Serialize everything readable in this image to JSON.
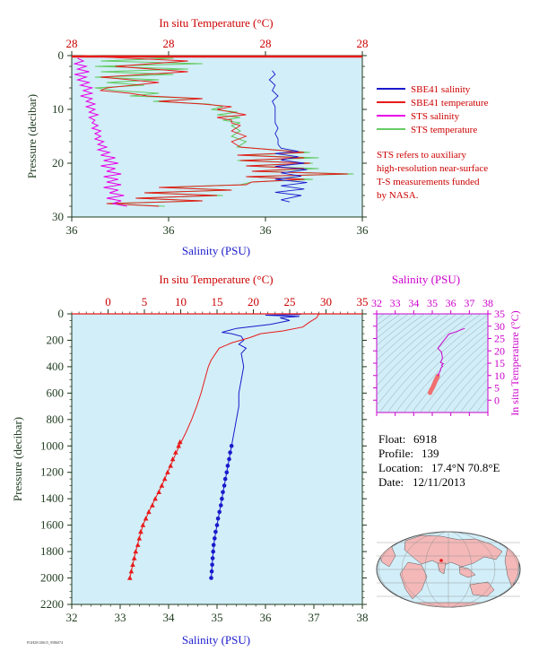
{
  "colors": {
    "plot_bg": "#d2eef8",
    "salinity": "#1a1acc",
    "temperature": "#e81a1a",
    "sts_salinity": "#e800e8",
    "sts_temperature": "#66cc66",
    "axis_dark": "#1e3a1e",
    "title_red": "#cc0000",
    "title_magenta": "#cc00cc"
  },
  "legend": {
    "items": [
      {
        "label": "SBE41 salinity",
        "color": "#1a1acc"
      },
      {
        "label": "SBE41 temperature",
        "color": "#e81a1a"
      },
      {
        "label": "STS salinity",
        "color": "#e800e8"
      },
      {
        "label": "STS temperature",
        "color": "#66cc66"
      }
    ],
    "note": [
      "STS refers to auxiliary",
      "high-resolution near-surface",
      "T-S measurements funded",
      "by NASA."
    ]
  },
  "info": {
    "float_label": "Float:",
    "float_value": "6918",
    "profile_label": "Profile:",
    "profile_value": "139",
    "location_label": "Location:",
    "location_value": "17.4°N  70.8°E",
    "date_label": "Date:",
    "date_value": "12/11/2013"
  },
  "footer_text": "FGH20130615_9586074",
  "chart_data": [
    {
      "id": "near-surface",
      "type": "line",
      "top_axis_label": "In situ Temperature (°C)",
      "top_ticks": [
        "28",
        "28",
        "28",
        "28"
      ],
      "bottom_axis_label": "Salinity (PSU)",
      "bottom_ticks": [
        "36",
        "36",
        "36",
        "36"
      ],
      "ylabel": "Pressure (decibar)",
      "y_ticks": [
        "0",
        "10",
        "20",
        "30"
      ],
      "ylim": [
        0,
        30
      ],
      "sbe41_salinity_frac": [
        [
          2.8,
          0.69
        ],
        [
          3.5,
          0.7
        ],
        [
          4.5,
          0.68
        ],
        [
          5.5,
          0.7
        ],
        [
          6.5,
          0.69
        ],
        [
          7.5,
          0.71
        ],
        [
          8.5,
          0.69
        ],
        [
          9.5,
          0.7
        ],
        [
          10.5,
          0.7
        ],
        [
          11.5,
          0.7
        ],
        [
          12.5,
          0.7
        ],
        [
          13.5,
          0.71
        ],
        [
          14.5,
          0.7
        ],
        [
          15.5,
          0.71
        ],
        [
          16.5,
          0.71
        ],
        [
          17.2,
          0.72
        ],
        [
          17.8,
          0.78
        ],
        [
          18.2,
          0.7
        ],
        [
          18.8,
          0.78
        ],
        [
          19.4,
          0.72
        ],
        [
          20,
          0.8
        ],
        [
          20.6,
          0.7
        ],
        [
          21.2,
          0.81
        ],
        [
          21.8,
          0.72
        ],
        [
          22.4,
          0.79
        ],
        [
          23,
          0.7
        ],
        [
          23.6,
          0.81
        ],
        [
          24.2,
          0.72
        ],
        [
          24.8,
          0.8
        ],
        [
          25.4,
          0.7
        ],
        [
          26,
          0.79
        ],
        [
          26.8,
          0.72
        ],
        [
          27.2,
          0.75
        ]
      ],
      "sbe41_temperature_frac": [
        [
          0,
          0.04
        ],
        [
          0.3,
          0.12
        ],
        [
          1,
          0.4
        ],
        [
          2,
          0.15
        ],
        [
          3,
          0.4
        ],
        [
          4,
          0.1
        ],
        [
          5,
          0.3
        ],
        [
          6,
          0.12
        ],
        [
          6.5,
          0.1
        ],
        [
          7,
          0.2
        ],
        [
          7.5,
          0.26
        ],
        [
          8,
          0.45
        ],
        [
          8.5,
          0.3
        ],
        [
          9,
          0.45
        ],
        [
          9.5,
          0.55
        ],
        [
          10,
          0.5
        ],
        [
          10.5,
          0.55
        ],
        [
          11,
          0.6
        ],
        [
          11.5,
          0.5
        ],
        [
          12,
          0.55
        ],
        [
          12.5,
          0.55
        ],
        [
          13,
          0.58
        ],
        [
          14,
          0.55
        ],
        [
          15,
          0.6
        ],
        [
          16,
          0.55
        ],
        [
          17,
          0.58
        ],
        [
          18,
          0.8
        ],
        [
          18.5,
          0.57
        ],
        [
          19,
          0.8
        ],
        [
          19.5,
          0.58
        ],
        [
          20,
          0.82
        ],
        [
          20.5,
          0.6
        ],
        [
          21,
          0.8
        ],
        [
          21.5,
          0.62
        ],
        [
          22,
          0.95
        ],
        [
          22.5,
          0.6
        ],
        [
          23,
          0.8
        ],
        [
          23.5,
          0.62
        ],
        [
          24,
          0.6
        ],
        [
          24.5,
          0.3
        ],
        [
          25,
          0.55
        ],
        [
          25.5,
          0.25
        ],
        [
          26,
          0.5
        ],
        [
          26.5,
          0.22
        ],
        [
          27,
          0.45
        ],
        [
          27.5,
          0.12
        ],
        [
          28,
          0.3
        ]
      ],
      "sts_salinity_frac": [
        [
          0.5,
          0.02
        ],
        [
          1,
          0.04
        ],
        [
          1.5,
          0.01
        ],
        [
          2,
          0.05
        ],
        [
          2.5,
          0.02
        ],
        [
          3,
          0.06
        ],
        [
          3.5,
          0.01
        ],
        [
          4,
          0.05
        ],
        [
          4.5,
          0.02
        ],
        [
          5,
          0.06
        ],
        [
          5.5,
          0.03
        ],
        [
          6,
          0.07
        ],
        [
          6.5,
          0.04
        ],
        [
          7,
          0.07
        ],
        [
          7.5,
          0.03
        ],
        [
          8,
          0.07
        ],
        [
          8.5,
          0.05
        ],
        [
          9,
          0.08
        ],
        [
          9.5,
          0.05
        ],
        [
          10,
          0.08
        ],
        [
          10.5,
          0.06
        ],
        [
          11,
          0.09
        ],
        [
          11.5,
          0.06
        ],
        [
          12,
          0.08
        ],
        [
          12.5,
          0.07
        ],
        [
          13,
          0.09
        ],
        [
          13.5,
          0.07
        ],
        [
          14,
          0.1
        ],
        [
          14.5,
          0.08
        ],
        [
          15,
          0.1
        ],
        [
          15.5,
          0.08
        ],
        [
          16,
          0.11
        ],
        [
          16.5,
          0.09
        ],
        [
          17,
          0.12
        ],
        [
          17.5,
          0.09
        ],
        [
          18,
          0.13
        ],
        [
          18.5,
          0.1
        ],
        [
          19,
          0.15
        ],
        [
          19.5,
          0.11
        ],
        [
          20,
          0.16
        ],
        [
          20.5,
          0.1
        ],
        [
          21,
          0.15
        ],
        [
          21.5,
          0.12
        ],
        [
          22,
          0.17
        ],
        [
          22.5,
          0.11
        ],
        [
          23,
          0.16
        ],
        [
          23.5,
          0.12
        ],
        [
          24,
          0.17
        ],
        [
          24.5,
          0.11
        ],
        [
          25,
          0.16
        ],
        [
          25.5,
          0.13
        ],
        [
          26,
          0.18
        ],
        [
          26.5,
          0.12
        ],
        [
          27,
          0.17
        ],
        [
          27.5,
          0.14
        ],
        [
          28,
          0.19
        ]
      ],
      "sts_temperature_frac": [
        [
          0,
          0.05
        ],
        [
          0.5,
          0.35
        ],
        [
          1,
          0.1
        ],
        [
          1.5,
          0.45
        ],
        [
          2,
          0.08
        ],
        [
          2.5,
          0.4
        ],
        [
          3,
          0.1
        ],
        [
          3.5,
          0.35
        ],
        [
          4,
          0.08
        ],
        [
          4.5,
          0.3
        ],
        [
          5,
          0.12
        ],
        [
          5.5,
          0.25
        ],
        [
          6,
          0.08
        ],
        [
          6.5,
          0.15
        ],
        [
          7,
          0.3
        ],
        [
          7.5,
          0.2
        ],
        [
          8,
          0.45
        ],
        [
          8.5,
          0.28
        ],
        [
          9,
          0.47
        ],
        [
          9.5,
          0.52
        ],
        [
          10,
          0.48
        ],
        [
          10.5,
          0.57
        ],
        [
          11,
          0.5
        ],
        [
          11.5,
          0.58
        ],
        [
          12,
          0.52
        ],
        [
          12.5,
          0.58
        ],
        [
          13,
          0.55
        ],
        [
          14,
          0.58
        ],
        [
          15,
          0.55
        ],
        [
          16,
          0.6
        ],
        [
          17,
          0.57
        ],
        [
          18,
          0.82
        ],
        [
          18.5,
          0.58
        ],
        [
          19,
          0.85
        ],
        [
          19.5,
          0.57
        ],
        [
          20,
          0.83
        ],
        [
          20.5,
          0.6
        ],
        [
          21,
          0.85
        ],
        [
          21.5,
          0.62
        ],
        [
          22,
          0.97
        ],
        [
          22.5,
          0.6
        ],
        [
          23,
          0.83
        ],
        [
          23.5,
          0.62
        ],
        [
          24,
          0.58
        ],
        [
          24.5,
          0.32
        ],
        [
          25,
          0.55
        ],
        [
          25.5,
          0.25
        ],
        [
          26,
          0.52
        ],
        [
          26.5,
          0.22
        ],
        [
          27,
          0.45
        ],
        [
          27.5,
          0.12
        ],
        [
          28,
          0.32
        ]
      ]
    },
    {
      "id": "full-profile",
      "type": "line",
      "top_axis_label": "In situ Temperature (°C)",
      "xlim_temperature": [
        -5,
        35
      ],
      "top_ticks": [
        0,
        5,
        10,
        15,
        20,
        25,
        30,
        35
      ],
      "bottom_axis_label": "Salinity (PSU)",
      "xlim_salinity": [
        32,
        38
      ],
      "bottom_ticks": [
        32,
        33,
        34,
        35,
        36,
        37,
        38
      ],
      "ylabel": "Pressure (decibar)",
      "ylim": [
        0,
        2200
      ],
      "y_ticks": [
        0,
        200,
        400,
        600,
        800,
        1000,
        1200,
        1400,
        1600,
        1800,
        2000,
        2200
      ],
      "salinity": [
        [
          0,
          36.75
        ],
        [
          5,
          36.7
        ],
        [
          10,
          36.0
        ],
        [
          20,
          36.7
        ],
        [
          30,
          36.3
        ],
        [
          50,
          36.5
        ],
        [
          80,
          36.1
        ],
        [
          110,
          35.4
        ],
        [
          140,
          35.1
        ],
        [
          150,
          35.3
        ],
        [
          170,
          35.5
        ],
        [
          200,
          35.55
        ],
        [
          230,
          35.45
        ],
        [
          260,
          35.6
        ],
        [
          300,
          35.5
        ],
        [
          400,
          35.55
        ],
        [
          500,
          35.5
        ],
        [
          600,
          35.45
        ],
        [
          700,
          35.45
        ],
        [
          800,
          35.4
        ],
        [
          900,
          35.35
        ],
        [
          1000,
          35.3
        ],
        [
          1100,
          35.25
        ],
        [
          1200,
          35.2
        ],
        [
          1300,
          35.15
        ],
        [
          1400,
          35.1
        ],
        [
          1500,
          35.05
        ],
        [
          1600,
          35.0
        ],
        [
          1700,
          34.95
        ],
        [
          1800,
          34.92
        ],
        [
          1900,
          34.9
        ],
        [
          2000,
          34.88
        ]
      ],
      "salinity_markers": [
        [
          1000,
          35.3
        ],
        [
          1050,
          35.27
        ],
        [
          1100,
          35.25
        ],
        [
          1150,
          35.22
        ],
        [
          1200,
          35.2
        ],
        [
          1250,
          35.17
        ],
        [
          1300,
          35.15
        ],
        [
          1350,
          35.12
        ],
        [
          1400,
          35.1
        ],
        [
          1450,
          35.08
        ],
        [
          1500,
          35.05
        ],
        [
          1550,
          35.02
        ],
        [
          1600,
          35.0
        ],
        [
          1650,
          34.97
        ],
        [
          1700,
          34.95
        ],
        [
          1750,
          34.93
        ],
        [
          1800,
          34.92
        ],
        [
          1850,
          34.91
        ],
        [
          1900,
          34.9
        ],
        [
          1950,
          34.89
        ],
        [
          2000,
          34.88
        ]
      ],
      "temperature": [
        [
          0,
          29.1
        ],
        [
          10,
          28.9
        ],
        [
          30,
          28.7
        ],
        [
          60,
          27.8
        ],
        [
          100,
          26.8
        ],
        [
          130,
          24.0
        ],
        [
          150,
          21.0
        ],
        [
          180,
          19.5
        ],
        [
          220,
          17.0
        ],
        [
          260,
          15.3
        ],
        [
          300,
          14.8
        ],
        [
          350,
          14.2
        ],
        [
          400,
          13.8
        ],
        [
          500,
          13.3
        ],
        [
          600,
          12.8
        ],
        [
          700,
          12.2
        ],
        [
          800,
          11.5
        ],
        [
          900,
          10.7
        ],
        [
          1000,
          9.8
        ],
        [
          1100,
          9.0
        ],
        [
          1200,
          8.2
        ],
        [
          1300,
          7.4
        ],
        [
          1400,
          6.5
        ],
        [
          1500,
          5.6
        ],
        [
          1600,
          4.8
        ],
        [
          1700,
          4.3
        ],
        [
          1800,
          3.8
        ],
        [
          1900,
          3.4
        ],
        [
          2000,
          3.0
        ]
      ],
      "temperature_markers": [
        [
          970,
          9.9
        ],
        [
          1000,
          9.7
        ],
        [
          1050,
          9.3
        ],
        [
          1100,
          8.9
        ],
        [
          1150,
          8.6
        ],
        [
          1200,
          8.2
        ],
        [
          1250,
          7.8
        ],
        [
          1300,
          7.4
        ],
        [
          1350,
          7.0
        ],
        [
          1400,
          6.5
        ],
        [
          1450,
          6.1
        ],
        [
          1500,
          5.6
        ],
        [
          1550,
          5.2
        ],
        [
          1600,
          4.8
        ],
        [
          1650,
          4.5
        ],
        [
          1700,
          4.3
        ],
        [
          1750,
          4.1
        ],
        [
          1800,
          3.8
        ],
        [
          1850,
          3.6
        ],
        [
          1900,
          3.4
        ],
        [
          1950,
          3.2
        ],
        [
          2000,
          3.0
        ]
      ]
    },
    {
      "id": "ts-diagram",
      "type": "line",
      "top_axis_label": "Salinity (PSU)",
      "xlim": [
        32,
        38
      ],
      "x_ticks": [
        32,
        33,
        34,
        35,
        36,
        37,
        38
      ],
      "right_axis_label": "In situ Temperature (°C)",
      "ylim": [
        -5,
        35
      ],
      "y_ticks": [
        0,
        5,
        10,
        15,
        20,
        25,
        30,
        35
      ],
      "profile": [
        [
          36.75,
          29.1
        ],
        [
          36.6,
          28.7
        ],
        [
          36.3,
          27.8
        ],
        [
          35.9,
          26.8
        ],
        [
          35.6,
          24.0
        ],
        [
          35.3,
          21.0
        ],
        [
          35.5,
          19.5
        ],
        [
          35.55,
          17.0
        ],
        [
          35.45,
          15.3
        ],
        [
          35.6,
          14.8
        ],
        [
          35.5,
          14.2
        ],
        [
          35.55,
          13.8
        ],
        [
          35.5,
          13.3
        ],
        [
          35.45,
          12.8
        ],
        [
          35.45,
          12.2
        ],
        [
          35.4,
          11.5
        ],
        [
          35.35,
          10.7
        ],
        [
          35.3,
          9.8
        ]
      ],
      "deep_band": [
        [
          35.3,
          9.8
        ],
        [
          35.2,
          8.2
        ],
        [
          35.1,
          6.5
        ],
        [
          35.0,
          4.8
        ],
        [
          34.95,
          4.3
        ],
        [
          34.9,
          3.4
        ],
        [
          34.88,
          3.0
        ]
      ]
    }
  ]
}
